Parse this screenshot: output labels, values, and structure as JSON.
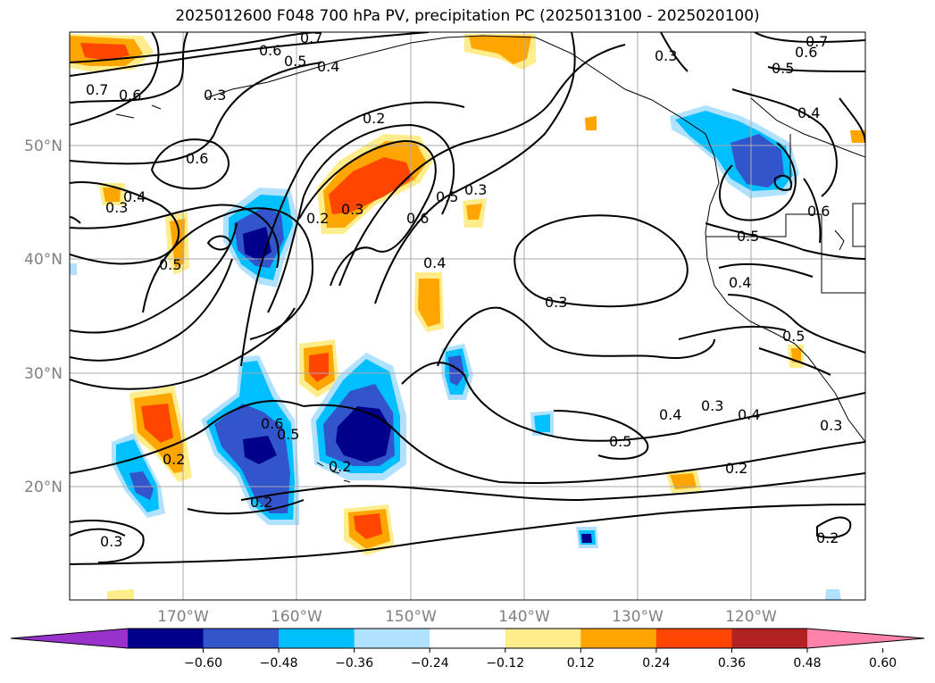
{
  "title": "2025012600 F048 700 hPa PV, precipitation PC (2025013100 - 2025020100)",
  "lat_labels": [
    "50°N",
    "40°N",
    "30°N",
    "20°N"
  ],
  "lon_labels": [
    "170°W",
    "160°W",
    "150°W",
    "140°W",
    "130°W",
    "120°W"
  ],
  "contour_labels": [
    "0.7",
    "0.6",
    "0.5",
    "0.4",
    "0.3",
    "0.2",
    "0.7",
    "0.6",
    "0.3",
    "0.6",
    "0.4",
    "0.3",
    "0.2",
    "0.5",
    "0.3",
    "0.6",
    "0.5",
    "0.4",
    "0.3",
    "0.5",
    "0.4",
    "0.3",
    "0.2",
    "0.6",
    "0.5",
    "0.2",
    "0.2",
    "0.3",
    "0.3",
    "0.7",
    "0.6",
    "0.5",
    "0.4",
    "0.6",
    "0.5",
    "0.4",
    "0.5",
    "0.4",
    "0.3",
    "0.2",
    "0.2"
  ],
  "colorbar": {
    "colors": [
      "#9932cc",
      "#00008b",
      "#3355cc",
      "#00bfff",
      "#b0e2ff",
      "#ffffff",
      "#ffec8b",
      "#ffa500",
      "#ff4500",
      "#b22222",
      "#ff82ab"
    ],
    "ticks": [
      "−0.60",
      "−0.48",
      "−0.36",
      "−0.24",
      "−0.12",
      "0.12",
      "0.24",
      "0.36",
      "0.48",
      "0.60"
    ]
  },
  "legend": {
    "contours": "700 hPa PV",
    "shading": "precipitation PC"
  }
}
